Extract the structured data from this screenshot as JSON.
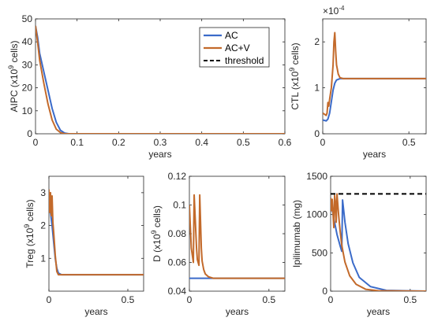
{
  "legend": {
    "entries": [
      {
        "label": "AC",
        "color": "#3b6bc9",
        "style": "solid"
      },
      {
        "label": "AC+V",
        "color": "#c36a2b",
        "style": "solid"
      },
      {
        "label": "threshold",
        "color": "#000000",
        "style": "dashed"
      }
    ],
    "placement": "top-right of first panel"
  },
  "chart_data": [
    {
      "id": "aipc",
      "type": "line",
      "xlabel": "years",
      "ylabel_main": "AIPC (x10",
      "ylabel_sup": "9",
      "ylabel_tail": " cells)",
      "xlim": [
        0,
        0.6
      ],
      "ylim": [
        0,
        50
      ],
      "xticks": [
        0,
        0.1,
        0.2,
        0.3,
        0.4,
        0.5,
        0.6
      ],
      "xticklabels": [
        "0",
        "0.1",
        "0.2",
        "0.3",
        "0.4",
        "0.5",
        "0.6"
      ],
      "yticks": [
        0,
        10,
        20,
        30,
        40,
        50
      ],
      "yticklabels": [
        "0",
        "10",
        "20",
        "30",
        "40",
        "50"
      ],
      "series": [
        {
          "name": "AC",
          "color": "#3b6bc9",
          "x": [
            0,
            0.005,
            0.01,
            0.02,
            0.03,
            0.04,
            0.05,
            0.06,
            0.07,
            0.08,
            0.1,
            0.6
          ],
          "y": [
            47,
            42,
            35,
            27,
            19,
            11,
            5,
            1.5,
            0.3,
            0,
            0,
            0
          ]
        },
        {
          "name": "AC+V",
          "color": "#c36a2b",
          "x": [
            0,
            0.005,
            0.01,
            0.02,
            0.03,
            0.04,
            0.05,
            0.06,
            0.07,
            0.08,
            0.1,
            0.6
          ],
          "y": [
            47,
            40,
            32,
            22,
            13,
            6,
            2,
            0.5,
            0,
            0,
            0,
            0
          ]
        }
      ]
    },
    {
      "id": "ctl",
      "type": "line",
      "xlabel": "years",
      "ylabel_main": "CTL (x10",
      "ylabel_sup": "9",
      "ylabel_tail": " cells)",
      "exponent_label": "×10",
      "exponent_sup": "-4",
      "xlim": [
        0,
        0.6
      ],
      "ylim": [
        0,
        2.5
      ],
      "xticks": [
        0,
        0.5
      ],
      "xticklabels": [
        "0",
        "0.5"
      ],
      "yticks": [
        0,
        1,
        2
      ],
      "yticklabels": [
        "0",
        "1",
        "2"
      ],
      "series": [
        {
          "name": "AC",
          "color": "#3b6bc9",
          "x": [
            0,
            0.02,
            0.03,
            0.04,
            0.05,
            0.06,
            0.07,
            0.08,
            0.1,
            0.15,
            0.6
          ],
          "y": [
            0.3,
            0.28,
            0.32,
            0.45,
            0.7,
            0.95,
            1.1,
            1.17,
            1.2,
            1.2,
            1.2
          ]
        },
        {
          "name": "AC+V",
          "color": "#c36a2b",
          "x": [
            0,
            0.02,
            0.025,
            0.03,
            0.035,
            0.04,
            0.05,
            0.06,
            0.065,
            0.07,
            0.075,
            0.08,
            0.09,
            0.1,
            0.12,
            0.15,
            0.6
          ],
          "y": [
            0.45,
            0.4,
            0.45,
            0.68,
            0.6,
            0.75,
            1.0,
            1.5,
            2.0,
            2.2,
            1.8,
            1.5,
            1.3,
            1.22,
            1.2,
            1.2,
            1.2
          ]
        }
      ]
    },
    {
      "id": "treg",
      "type": "line",
      "xlabel": "years",
      "ylabel_main": "Treg (x10",
      "ylabel_sup": "9",
      "ylabel_tail": " cells)",
      "xlim": [
        0,
        0.6
      ],
      "ylim": [
        0,
        3.5
      ],
      "xticks": [
        0,
        0.5
      ],
      "xticklabels": [
        "0",
        "0.5"
      ],
      "yticks": [
        1,
        2,
        3
      ],
      "yticklabels": [
        "1",
        "2",
        "3"
      ],
      "series": [
        {
          "name": "AC",
          "color": "#3b6bc9",
          "x": [
            0,
            0.01,
            0.02,
            0.03,
            0.04,
            0.05,
            0.06,
            0.08,
            0.6
          ],
          "y": [
            2.5,
            2.4,
            2.0,
            1.5,
            1.0,
            0.7,
            0.55,
            0.5,
            0.5
          ]
        },
        {
          "name": "AC+V",
          "color": "#c36a2b",
          "x": [
            0,
            0.005,
            0.01,
            0.015,
            0.02,
            0.025,
            0.03,
            0.04,
            0.05,
            0.06,
            0.08,
            0.6
          ],
          "y": [
            3.1,
            2.4,
            3.0,
            2.3,
            2.9,
            2.1,
            1.8,
            1.1,
            0.6,
            0.5,
            0.5,
            0.5
          ]
        }
      ]
    },
    {
      "id": "dcells",
      "type": "line",
      "xlabel": "years",
      "ylabel_main": "D (x10",
      "ylabel_sup": "9",
      "ylabel_tail": " cells)",
      "xlim": [
        0,
        0.6
      ],
      "ylim": [
        0.04,
        0.12
      ],
      "xticks": [
        0,
        0.5
      ],
      "xticklabels": [
        "0",
        "0.5"
      ],
      "yticks": [
        0.04,
        0.06,
        0.08,
        0.1,
        0.12
      ],
      "yticklabels": [
        "0.04",
        "0.06",
        "0.08",
        "0.1",
        "0.12"
      ],
      "series": [
        {
          "name": "AC",
          "color": "#3b6bc9",
          "x": [
            0,
            0.01,
            0.6
          ],
          "y": [
            0.049,
            0.049,
            0.049
          ]
        },
        {
          "name": "AC+V",
          "color": "#c36a2b",
          "x": [
            0,
            0.012,
            0.025,
            0.03,
            0.045,
            0.05,
            0.06,
            0.065,
            0.075,
            0.08,
            0.09,
            0.1,
            0.12,
            0.15,
            0.6
          ],
          "y": [
            0.1,
            0.07,
            0.06,
            0.107,
            0.07,
            0.062,
            0.058,
            0.107,
            0.07,
            0.061,
            0.055,
            0.052,
            0.05,
            0.049,
            0.049
          ]
        }
      ]
    },
    {
      "id": "ipilimumab",
      "type": "line",
      "xlabel": "years",
      "ylabel_main": "Ipilimumab (mg)",
      "ylabel_sup": "",
      "ylabel_tail": "",
      "xlim": [
        0,
        0.6
      ],
      "ylim": [
        0,
        1500
      ],
      "xticks": [
        0,
        0.5
      ],
      "xticklabels": [
        "0",
        "0.5"
      ],
      "yticks": [
        0,
        500,
        1000,
        1500
      ],
      "yticklabels": [
        "0",
        "500",
        "1000",
        "1500"
      ],
      "threshold": 1270,
      "series": [
        {
          "name": "AC",
          "color": "#3b6bc9",
          "x": [
            0,
            0.02,
            0.04,
            0.06,
            0.07,
            0.075,
            0.09,
            0.11,
            0.14,
            0.18,
            0.25,
            0.35,
            0.6
          ],
          "y": [
            1200,
            950,
            740,
            590,
            520,
            1190,
            900,
            620,
            370,
            180,
            60,
            10,
            0
          ]
        },
        {
          "name": "AC+V",
          "color": "#c36a2b",
          "x": [
            0,
            0.005,
            0.01,
            0.02,
            0.025,
            0.03,
            0.035,
            0.04,
            0.05,
            0.06,
            0.07,
            0.09,
            0.12,
            0.16,
            0.22,
            0.3,
            0.6
          ],
          "y": [
            1220,
            1050,
            1200,
            830,
            1250,
            1150,
            900,
            1270,
            1000,
            780,
            600,
            380,
            200,
            90,
            25,
            5,
            0
          ]
        }
      ]
    }
  ]
}
